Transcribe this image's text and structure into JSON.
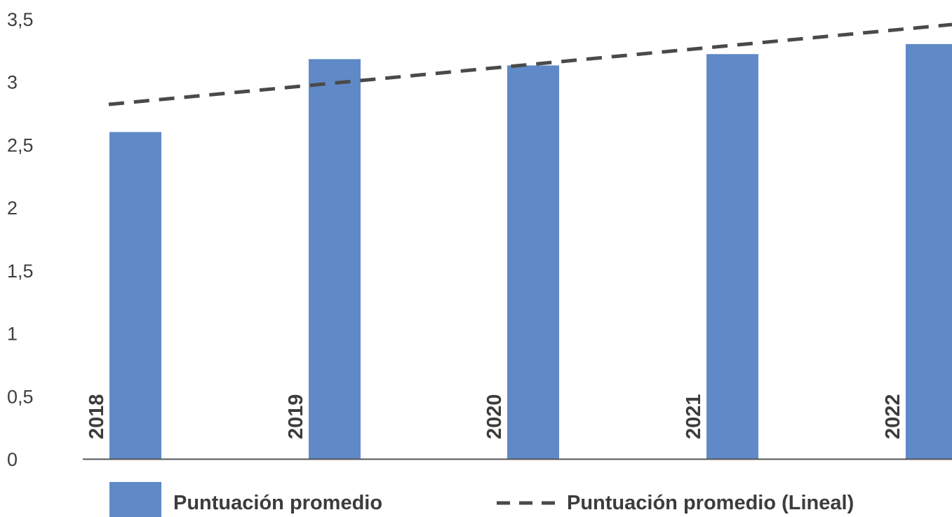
{
  "chart_data": {
    "type": "bar",
    "categories": [
      "2018",
      "2019",
      "2020",
      "2021",
      "2022"
    ],
    "series": [
      {
        "name": "Puntuación promedio",
        "values": [
          2.6,
          3.18,
          3.13,
          3.22,
          3.3
        ],
        "color": "#5f8ac7"
      }
    ],
    "trendline": {
      "name": "Puntuación promedio (Lineal)",
      "type": "linear",
      "values": [
        2.84,
        2.99,
        3.14,
        3.29,
        3.44
      ],
      "color": "#4a4a4a",
      "style": "dashed"
    },
    "yticks": [
      "0",
      "0,5",
      "1",
      "1,5",
      "2",
      "2,5",
      "3",
      "3,5"
    ],
    "ylim": [
      0,
      3.5
    ],
    "grid": false,
    "legend_position": "bottom",
    "title": "",
    "xlabel": "",
    "ylabel": ""
  }
}
